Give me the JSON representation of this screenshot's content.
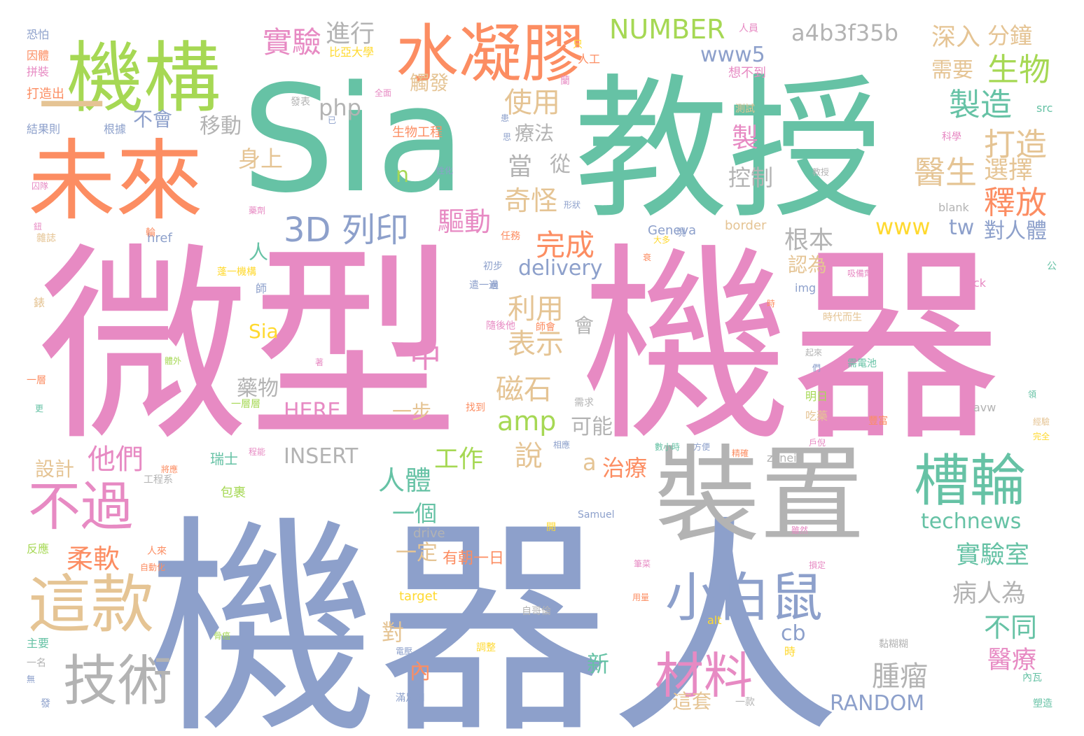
{
  "cloud": {
    "palette": {
      "teal": "#66c2a5",
      "orange": "#fc8d62",
      "blue": "#8da0cb",
      "pink": "#e78ac3",
      "green": "#a6d854",
      "yellow": "#ffd92f",
      "tan": "#e5c494",
      "gray": "#b3b3b3"
    },
    "words": [
      {
        "text": "微型",
        "color": "#e78ac3"
      },
      {
        "text": "機器",
        "color": "#e78ac3"
      },
      {
        "text": "機器人",
        "color": "#8da0cb"
      },
      {
        "text": "Sia",
        "color": "#66c2a5"
      },
      {
        "text": "教授",
        "color": "#66c2a5"
      },
      {
        "text": "裝置",
        "color": "#b3b3b3"
      },
      {
        "text": "未來",
        "color": "#fc8d62"
      },
      {
        "text": "機構",
        "color": "#a6d854"
      },
      {
        "text": "水凝膠",
        "color": "#fc8d62"
      },
      {
        "text": "一",
        "color": "#e5c494"
      },
      {
        "text": "這款",
        "color": "#e5c494"
      },
      {
        "text": "技術",
        "color": "#b3b3b3"
      },
      {
        "text": "不過",
        "color": "#e78ac3"
      },
      {
        "text": "槽輪",
        "color": "#66c2a5"
      },
      {
        "text": "小白鼠",
        "color": "#8da0cb"
      },
      {
        "text": "材料",
        "color": "#e78ac3"
      },
      {
        "text": "3D 列印",
        "color": "#8da0cb"
      },
      {
        "text": "實驗",
        "color": "#e78ac3"
      },
      {
        "text": "進行",
        "color": "#b3b3b3"
      },
      {
        "text": "NUMBER",
        "color": "#a6d854"
      },
      {
        "text": "a4b3f35b",
        "color": "#b3b3b3"
      },
      {
        "text": "深入",
        "color": "#e5c494"
      },
      {
        "text": "分鐘",
        "color": "#e5c494"
      },
      {
        "text": "需要",
        "color": "#e5c494"
      },
      {
        "text": "生物",
        "color": "#a6d854"
      },
      {
        "text": "製造",
        "color": "#66c2a5"
      },
      {
        "text": "打造",
        "color": "#e5c494"
      },
      {
        "text": "醫生",
        "color": "#e5c494"
      },
      {
        "text": "選擇",
        "color": "#e5c494"
      },
      {
        "text": "釋放",
        "color": "#fc8d62"
      },
      {
        "text": "www5",
        "color": "#8da0cb"
      },
      {
        "text": "php",
        "color": "#b3b3b3"
      },
      {
        "text": "使用",
        "color": "#e5c494"
      },
      {
        "text": "療法",
        "color": "#b3b3b3"
      },
      {
        "text": "當",
        "color": "#b3b3b3"
      },
      {
        "text": "從",
        "color": "#b3b3b3"
      },
      {
        "text": "製",
        "color": "#e78ac3"
      },
      {
        "text": "控制",
        "color": "#b3b3b3"
      },
      {
        "text": "奇怪",
        "color": "#e5c494"
      },
      {
        "text": "驅動",
        "color": "#e78ac3"
      },
      {
        "text": "www",
        "color": "#ffd92f"
      },
      {
        "text": "tw",
        "color": "#8da0cb"
      },
      {
        "text": "對人體",
        "color": "#8da0cb"
      },
      {
        "text": "完成",
        "color": "#fc8d62"
      },
      {
        "text": "根本",
        "color": "#b3b3b3"
      },
      {
        "text": "delivery",
        "color": "#8da0cb"
      },
      {
        "text": "利用",
        "color": "#e5c494"
      },
      {
        "text": "表示",
        "color": "#e5c494"
      },
      {
        "text": "磁石",
        "color": "#e5c494"
      },
      {
        "text": "amp",
        "color": "#a6d854"
      },
      {
        "text": "可能",
        "color": "#b3b3b3"
      },
      {
        "text": "說",
        "color": "#e5c494"
      },
      {
        "text": "a",
        "color": "#e5c494"
      },
      {
        "text": "治療",
        "color": "#fc8d62"
      },
      {
        "text": "藥物",
        "color": "#b3b3b3"
      },
      {
        "text": "HERE",
        "color": "#e78ac3"
      },
      {
        "text": "INSERT",
        "color": "#b3b3b3"
      },
      {
        "text": "人體",
        "color": "#66c2a5"
      },
      {
        "text": "一個",
        "color": "#66c2a5"
      },
      {
        "text": "一步",
        "color": "#e5c494"
      },
      {
        "text": "工作",
        "color": "#a6d854"
      },
      {
        "text": "他們",
        "color": "#e78ac3"
      },
      {
        "text": "柔軟",
        "color": "#fc8d62"
      },
      {
        "text": "technews",
        "color": "#66c2a5"
      },
      {
        "text": "實驗室",
        "color": "#66c2a5"
      },
      {
        "text": "病人為",
        "color": "#b3b3b3"
      },
      {
        "text": "不同",
        "color": "#66c2a5"
      },
      {
        "text": "醫療",
        "color": "#e78ac3"
      },
      {
        "text": "腫瘤",
        "color": "#b3b3b3"
      },
      {
        "text": "RANDOM",
        "color": "#8da0cb"
      },
      {
        "text": "新",
        "color": "#66c2a5"
      },
      {
        "text": "內",
        "color": "#fc8d62"
      },
      {
        "text": "對",
        "color": "#e5c494"
      },
      {
        "text": "cb",
        "color": "#8da0cb"
      },
      {
        "text": "移動",
        "color": "#b3b3b3"
      },
      {
        "text": "不會",
        "color": "#8da0cb"
      },
      {
        "text": "身上",
        "color": "#e5c494"
      },
      {
        "text": "Sia",
        "color": "#ffd92f"
      },
      {
        "text": "中",
        "color": "#e78ac3"
      },
      {
        "text": "人",
        "color": "#66c2a5"
      },
      {
        "text": "認為",
        "color": "#e5c494"
      },
      {
        "text": "會",
        "color": "#b3b3b3"
      },
      {
        "text": "設計",
        "color": "#e5c494"
      },
      {
        "text": "一定",
        "color": "#e5c494"
      },
      {
        "text": "有朝一日",
        "color": "#fc8d62"
      },
      {
        "text": "n",
        "color": "#a6d854"
      },
      {
        "text": "觸發",
        "color": "#e5c494"
      },
      {
        "text": "這套",
        "color": "#e5c494"
      },
      {
        "text": "恐怕",
        "color": "#8da0cb"
      },
      {
        "text": "因體",
        "color": "#fc8d62"
      },
      {
        "text": "拼裝",
        "color": "#e78ac3"
      },
      {
        "text": "打造出",
        "color": "#fc8d62"
      },
      {
        "text": "結果則",
        "color": "#8da0cb"
      },
      {
        "text": "根據",
        "color": "#8da0cb"
      },
      {
        "text": "生物工程",
        "color": "#fc8d62"
      },
      {
        "text": "發表",
        "color": "#b3b3b3"
      },
      {
        "text": "比亞大學",
        "color": "#ffd92f"
      },
      {
        "text": "想不到",
        "color": "#e78ac3"
      },
      {
        "text": "人員",
        "color": "#e78ac3"
      },
      {
        "text": "人工",
        "color": "#fc8d62"
      },
      {
        "text": "src",
        "color": "#66c2a5"
      },
      {
        "text": "科學",
        "color": "#e78ac3"
      },
      {
        "text": "測試",
        "color": "#e5c494"
      },
      {
        "text": "blank",
        "color": "#b3b3b3"
      },
      {
        "text": "border",
        "color": "#e5c494"
      },
      {
        "text": "Geneva",
        "color": "#8da0cb"
      },
      {
        "text": "href",
        "color": "#8da0cb"
      },
      {
        "text": "img",
        "color": "#8da0cb"
      },
      {
        "text": "ck",
        "color": "#e78ac3"
      },
      {
        "text": "時代而生",
        "color": "#e5c494"
      },
      {
        "text": "Samuel",
        "color": "#8da0cb"
      },
      {
        "text": "drive",
        "color": "#b3b3b3"
      },
      {
        "text": "zoneid",
        "color": "#b3b3b3"
      },
      {
        "text": "target",
        "color": "#ffd92f"
      },
      {
        "text": "alt",
        "color": "#ffd92f"
      },
      {
        "text": "avw",
        "color": "#b3b3b3"
      },
      {
        "text": "明日",
        "color": "#a6d854"
      },
      {
        "text": "吃藥",
        "color": "#e5c494"
      },
      {
        "text": "瑞士",
        "color": "#66c2a5"
      },
      {
        "text": "包裹",
        "color": "#a6d854"
      },
      {
        "text": "自哥倫",
        "color": "#b3b3b3"
      },
      {
        "text": "工程系",
        "color": "#b3b3b3"
      },
      {
        "text": "主要",
        "color": "#66c2a5"
      },
      {
        "text": "一名",
        "color": "#b3b3b3"
      },
      {
        "text": "反應",
        "color": "#a6d854"
      },
      {
        "text": "人來",
        "color": "#fc8d62"
      },
      {
        "text": "自動化",
        "color": "#fc8d62"
      },
      {
        "text": "黏糊糊",
        "color": "#b3b3b3"
      },
      {
        "text": "內瓦",
        "color": "#66c2a5"
      },
      {
        "text": "塑造",
        "color": "#66c2a5"
      },
      {
        "text": "一層層",
        "color": "#a6d854"
      },
      {
        "text": "一層",
        "color": "#fc8d62"
      },
      {
        "text": "需求",
        "color": "#b3b3b3"
      },
      {
        "text": "時",
        "color": "#ffd92f"
      },
      {
        "text": "藥劑",
        "color": "#e78ac3"
      },
      {
        "text": "雜誌",
        "color": "#e5c494"
      },
      {
        "text": "蓬一機構",
        "color": "#ffd92f"
      },
      {
        "text": "任務",
        "color": "#fc8d62"
      },
      {
        "text": "初步",
        "color": "#8da0cb"
      },
      {
        "text": "一款",
        "color": "#b3b3b3"
      },
      {
        "text": "滿足用",
        "color": "#8da0cb"
      },
      {
        "text": "調整",
        "color": "#ffd92f"
      },
      {
        "text": "電壓",
        "color": "#8da0cb"
      },
      {
        "text": "性化",
        "color": "#8da0cb"
      },
      {
        "text": "形狀",
        "color": "#8da0cb"
      },
      {
        "text": "公",
        "color": "#66c2a5"
      },
      {
        "text": "豐富",
        "color": "#fc8d62"
      },
      {
        "text": "需電池",
        "color": "#66c2a5"
      },
      {
        "text": "戶倪",
        "color": "#e78ac3"
      },
      {
        "text": "數小時",
        "color": "#66c2a5"
      },
      {
        "text": "方便",
        "color": "#8da0cb"
      },
      {
        "text": "精確",
        "color": "#fc8d62"
      },
      {
        "text": "師",
        "color": "#8da0cb"
      },
      {
        "text": "師會",
        "color": "#fc8d62"
      },
      {
        "text": "找到",
        "color": "#fc8d62"
      },
      {
        "text": "隨後他",
        "color": "#e78ac3"
      },
      {
        "text": "遣一過",
        "color": "#8da0cb"
      },
      {
        "text": "全面",
        "color": "#e78ac3"
      },
      {
        "text": "已",
        "color": "#8da0cb"
      },
      {
        "text": "思",
        "color": "#8da0cb"
      },
      {
        "text": "患",
        "color": "#8da0cb"
      },
      {
        "text": "只",
        "color": "#ffd92f"
      },
      {
        "text": "蘭",
        "color": "#e78ac3"
      },
      {
        "text": "現",
        "color": "#8da0cb"
      },
      {
        "text": "大多",
        "color": "#ffd92f"
      },
      {
        "text": "教授",
        "color": "#b3b3b3"
      },
      {
        "text": "囚隊",
        "color": "#e78ac3"
      },
      {
        "text": "輪",
        "color": "#fc8d62"
      },
      {
        "text": "吸備劑",
        "color": "#e78ac3"
      },
      {
        "text": "時",
        "color": "#fc8d62"
      },
      {
        "text": "骨癌",
        "color": "#a6d854"
      },
      {
        "text": "經驗",
        "color": "#e5c494"
      },
      {
        "text": "完全",
        "color": "#ffd92f"
      },
      {
        "text": "程能",
        "color": "#e78ac3"
      },
      {
        "text": "相應",
        "color": "#8da0cb"
      },
      {
        "text": "將應",
        "color": "#fc8d62"
      },
      {
        "text": "體外",
        "color": "#a6d854"
      },
      {
        "text": "發",
        "color": "#8da0cb"
      },
      {
        "text": "雖然",
        "color": "#e78ac3"
      },
      {
        "text": "損定",
        "color": "#e78ac3"
      },
      {
        "text": "開",
        "color": "#ffd92f"
      },
      {
        "text": "用量",
        "color": "#fc8d62"
      },
      {
        "text": "筆菜",
        "color": "#e78ac3"
      },
      {
        "text": "更",
        "color": "#66c2a5"
      },
      {
        "text": "無",
        "color": "#8da0cb"
      },
      {
        "text": "衰",
        "color": "#fc8d62"
      },
      {
        "text": "錶",
        "color": "#e5c494"
      },
      {
        "text": "著",
        "color": "#e78ac3"
      },
      {
        "text": "們",
        "color": "#8da0cb"
      },
      {
        "text": "起來",
        "color": "#b3b3b3"
      },
      {
        "text": "層",
        "color": "#8da0cb"
      },
      {
        "text": "鈕",
        "color": "#e78ac3"
      },
      {
        "text": "領",
        "color": "#66c2a5"
      }
    ]
  }
}
